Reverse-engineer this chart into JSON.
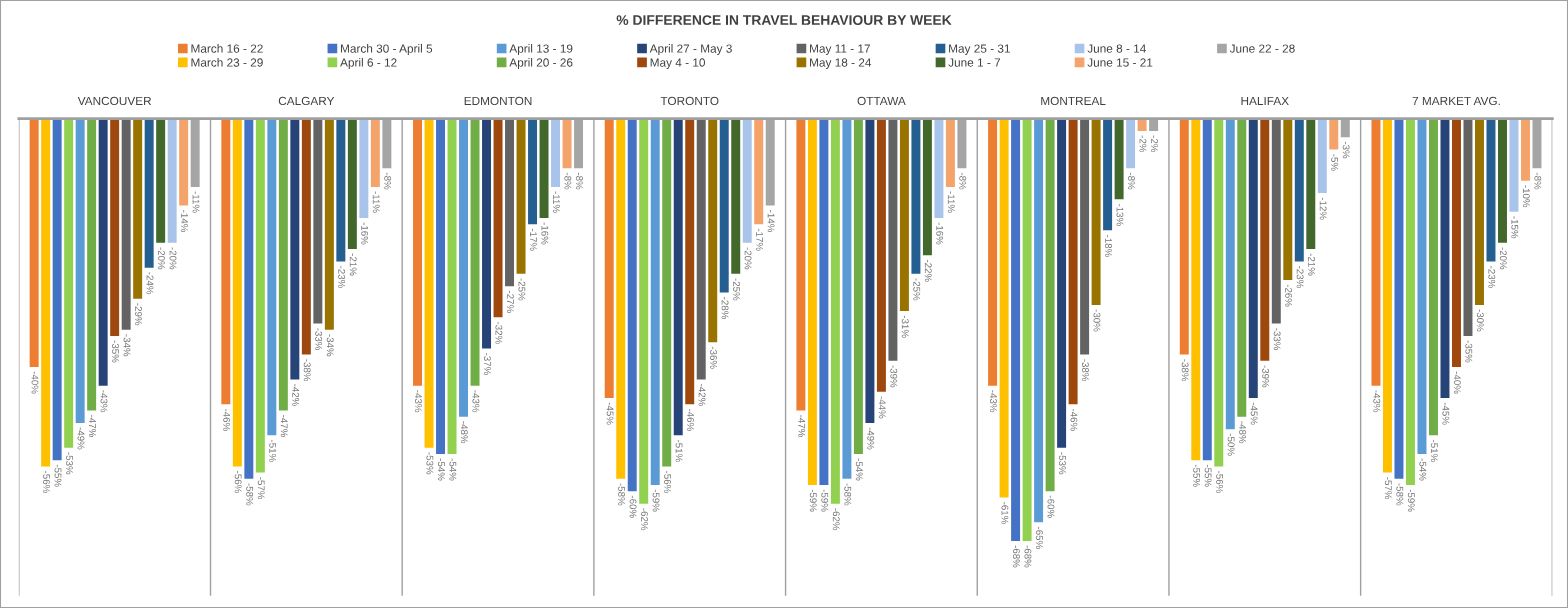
{
  "chart_data": {
    "type": "bar",
    "title": "% DIFFERENCE IN TRAVEL BEHAVIOUR BY WEEK",
    "categories": [
      "VANCOUVER",
      "CALGARY",
      "EDMONTON",
      "TORONTO",
      "OTTAWA",
      "MONTREAL",
      "HALIFAX",
      "7 MARKET AVG."
    ],
    "series": [
      {
        "name": "March 16 - 22",
        "color": "#ed7d31",
        "values": [
          -40,
          -46,
          -43,
          -45,
          -47,
          -43,
          -38,
          -43
        ],
        "value_labels": [
          "-40%",
          "-46%",
          "-43%",
          "-45%",
          "-47%",
          "-43%",
          "-38%",
          "-43%"
        ]
      },
      {
        "name": "March 23 - 29",
        "color": "#ffc000",
        "values": [
          -56,
          -56,
          -53,
          -58,
          -59,
          -61,
          -55,
          -57
        ],
        "value_labels": [
          "-56%",
          "-56%",
          "-53%",
          "-58%",
          "-59%",
          "-61%",
          "-55%",
          "-57%"
        ]
      },
      {
        "name": "March 30 - April 5",
        "color": "#4472c4",
        "values": [
          -55,
          -58,
          -54,
          -60,
          -59,
          -68,
          -55,
          -58
        ],
        "value_labels": [
          "-55%",
          "-58%",
          "-54%",
          "-60%",
          "-59%",
          "-68%",
          "-55%",
          "-58%"
        ]
      },
      {
        "name": "April 6 - 12",
        "color": "#92d050",
        "values": [
          -53,
          -57,
          -54,
          -62,
          -62,
          -68,
          -56,
          -59
        ],
        "value_labels": [
          "-53%",
          "-57%",
          "-54%",
          "-62%",
          "-62%",
          "-68%",
          "-56%",
          "-59%"
        ]
      },
      {
        "name": "April 13 - 19",
        "color": "#5b9bd5",
        "values": [
          -49,
          -51,
          -48,
          -59,
          -58,
          -65,
          -50,
          -54
        ],
        "value_labels": [
          "-49%",
          "-51%",
          "-48%",
          "-59%",
          "-58%",
          "-65%",
          "-50%",
          "-54%"
        ]
      },
      {
        "name": "April 20 - 26",
        "color": "#70ad47",
        "values": [
          -47,
          -47,
          -43,
          -56,
          -54,
          -60,
          -48,
          -51
        ],
        "value_labels": [
          "-47%",
          "-47%",
          "-43%",
          "-56%",
          "-54%",
          "-60%",
          "-48%",
          "-51%"
        ]
      },
      {
        "name": "April 27 - May 3",
        "color": "#264478",
        "values": [
          -43,
          -42,
          -37,
          -51,
          -49,
          -53,
          -45,
          -45
        ],
        "value_labels": [
          "-43%",
          "-42%",
          "-37%",
          "-51%",
          "-49%",
          "-53%",
          "-45%",
          "-45%"
        ]
      },
      {
        "name": "May 4 - 10",
        "color": "#9e480e",
        "values": [
          -35,
          -38,
          -32,
          -46,
          -44,
          -46,
          -39,
          -40
        ],
        "value_labels": [
          "-35%",
          "-38%",
          "-32%",
          "-46%",
          "-44%",
          "-46%",
          "-39%",
          "-40%"
        ]
      },
      {
        "name": "May 11 - 17",
        "color": "#636363",
        "values": [
          -34,
          -33,
          -27,
          -42,
          -39,
          -38,
          -33,
          -35
        ],
        "value_labels": [
          "-34%",
          "-33%",
          "-27%",
          "-42%",
          "-39%",
          "-38%",
          "-33%",
          "-35%"
        ]
      },
      {
        "name": "May 18 - 24",
        "color": "#997300",
        "values": [
          -29,
          -34,
          -25,
          -36,
          -31,
          -30,
          -26,
          -30
        ],
        "value_labels": [
          "-29%",
          "-34%",
          "-25%",
          "-36%",
          "-31%",
          "-30%",
          "-26%",
          "-30%"
        ]
      },
      {
        "name": "May 25 - 31",
        "color": "#255e91",
        "values": [
          -24,
          -23,
          -17,
          -28,
          -25,
          -18,
          -23,
          -23
        ],
        "value_labels": [
          "-24%",
          "-23%",
          "-17%",
          "-28%",
          "-25%",
          "-18%",
          "-23%",
          "-23%"
        ]
      },
      {
        "name": "June 1 - 7",
        "color": "#43682b",
        "values": [
          -20,
          -21,
          -16,
          -25,
          -22,
          -13,
          -21,
          -20
        ],
        "value_labels": [
          "-20%",
          "-21%",
          "-16%",
          "-25%",
          "-22%",
          "-13%",
          "-21%",
          "-20%"
        ]
      },
      {
        "name": "June 8 - 14",
        "color": "#a9c4eb",
        "values": [
          -20,
          -16,
          -11,
          -20,
          -16,
          -8,
          -12,
          -15
        ],
        "value_labels": [
          "-20%",
          "-16%",
          "-11%",
          "-20%",
          "-16%",
          "-8%",
          "-12%",
          "-15%"
        ]
      },
      {
        "name": "June 15 - 21",
        "color": "#f4a46a",
        "values": [
          -14,
          -11,
          -8,
          -17,
          -11,
          -2,
          -5,
          -10
        ],
        "value_labels": [
          "-14%",
          "-11%",
          "-8%",
          "-17%",
          "-11%",
          "-2%",
          "-5%",
          "-10%"
        ]
      },
      {
        "name": "June 22 - 28",
        "color": "#a5a5a5",
        "values": [
          -11,
          -8,
          -8,
          -14,
          -8,
          -2,
          -3,
          -8
        ],
        "value_labels": [
          "-11%",
          "-8%",
          "-8%",
          "-14%",
          "-8%",
          "-2%",
          "-3%",
          "-8%"
        ]
      }
    ],
    "tick_labels": "x",
    "legend": "top",
    "grid": "x"
  }
}
